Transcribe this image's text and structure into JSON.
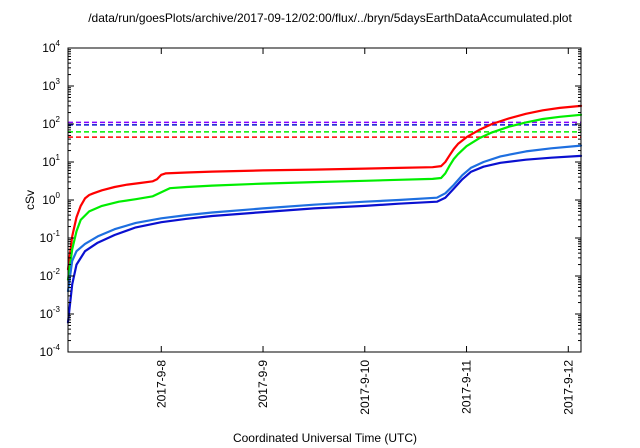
{
  "chart_data": {
    "type": "line",
    "title": "/data/run/goesPlots/archive/2017-09-12/02:00/flux/../bryn/5daysEarthDataAccumulated.plot",
    "xlabel": "Coordinated Universal Time (UTC)",
    "ylabel": "cSv",
    "y_scale": "log",
    "ylim": [
      0.0001,
      10000
    ],
    "y_ticks": [
      {
        "value": 0.0001,
        "base": "10",
        "exp": "-4"
      },
      {
        "value": 0.001,
        "base": "10",
        "exp": "-3"
      },
      {
        "value": 0.01,
        "base": "10",
        "exp": "-2"
      },
      {
        "value": 0.1,
        "base": "10",
        "exp": "-1"
      },
      {
        "value": 1,
        "base": "10",
        "exp": "0"
      },
      {
        "value": 10,
        "base": "10",
        "exp": "1"
      },
      {
        "value": 100,
        "base": "10",
        "exp": "2"
      },
      {
        "value": 1000,
        "base": "10",
        "exp": "3"
      },
      {
        "value": 10000,
        "base": "10",
        "exp": "4"
      }
    ],
    "xlim": [
      "2017-09-07T02:00",
      "2017-09-12T03:00"
    ],
    "x_ticks": [
      {
        "value": "2017-09-08T00:00",
        "label": "2017-9-8"
      },
      {
        "value": "2017-09-09T00:00",
        "label": "2017-9-9"
      },
      {
        "value": "2017-09-10T00:00",
        "label": "2017-9-10"
      },
      {
        "value": "2017-09-11T00:00",
        "label": "2017-9-11"
      },
      {
        "value": "2017-09-12T00:00",
        "label": "2017-9-12"
      }
    ],
    "grid": false,
    "legend": "none",
    "series": [
      {
        "color": "#ff0000",
        "style": "solid",
        "points": [
          [
            "2017-09-07T02:00",
            0.015
          ],
          [
            "2017-09-07T03:00",
            0.11
          ],
          [
            "2017-09-07T04:00",
            0.35
          ],
          [
            "2017-09-07T05:00",
            0.7
          ],
          [
            "2017-09-07T06:00",
            1.1
          ],
          [
            "2017-09-07T07:00",
            1.35
          ],
          [
            "2017-09-07T08:00",
            1.5
          ],
          [
            "2017-09-07T10:00",
            1.8
          ],
          [
            "2017-09-07T13:00",
            2.2
          ],
          [
            "2017-09-07T16:00",
            2.55
          ],
          [
            "2017-09-07T19:00",
            2.8
          ],
          [
            "2017-09-07T22:00",
            3.1
          ],
          [
            "2017-09-07T23:00",
            3.5
          ],
          [
            "2017-09-08T00:00",
            4.6
          ],
          [
            "2017-09-08T01:00",
            5.0
          ],
          [
            "2017-09-08T06:00",
            5.3
          ],
          [
            "2017-09-08T12:00",
            5.6
          ],
          [
            "2017-09-09T00:00",
            6.0
          ],
          [
            "2017-09-09T12:00",
            6.3
          ],
          [
            "2017-09-10T00:00",
            6.7
          ],
          [
            "2017-09-10T08:00",
            7.0
          ],
          [
            "2017-09-10T16:00",
            7.3
          ],
          [
            "2017-09-10T18:00",
            7.8
          ],
          [
            "2017-09-10T19:00",
            10.0
          ],
          [
            "2017-09-10T20:00",
            15
          ],
          [
            "2017-09-10T21:00",
            22
          ],
          [
            "2017-09-10T22:00",
            30
          ],
          [
            "2017-09-11T00:00",
            45
          ],
          [
            "2017-09-11T03:00",
            70
          ],
          [
            "2017-09-11T06:00",
            100
          ],
          [
            "2017-09-11T10:00",
            140
          ],
          [
            "2017-09-11T14:00",
            185
          ],
          [
            "2017-09-11T18:00",
            230
          ],
          [
            "2017-09-11T22:00",
            265
          ],
          [
            "2017-09-12T03:00",
            300
          ]
        ]
      },
      {
        "color": "#00ee00",
        "style": "solid",
        "points": [
          [
            "2017-09-07T02:00",
            0.008
          ],
          [
            "2017-09-07T03:00",
            0.05
          ],
          [
            "2017-09-07T04:00",
            0.15
          ],
          [
            "2017-09-07T05:00",
            0.3
          ],
          [
            "2017-09-07T07:00",
            0.5
          ],
          [
            "2017-09-07T10:00",
            0.7
          ],
          [
            "2017-09-07T14:00",
            0.9
          ],
          [
            "2017-09-07T18:00",
            1.05
          ],
          [
            "2017-09-07T22:00",
            1.25
          ],
          [
            "2017-09-08T00:00",
            1.6
          ],
          [
            "2017-09-08T02:00",
            2.05
          ],
          [
            "2017-09-08T06:00",
            2.2
          ],
          [
            "2017-09-08T12:00",
            2.4
          ],
          [
            "2017-09-09T00:00",
            2.7
          ],
          [
            "2017-09-09T12:00",
            2.95
          ],
          [
            "2017-09-10T00:00",
            3.2
          ],
          [
            "2017-09-10T08:00",
            3.4
          ],
          [
            "2017-09-10T16:00",
            3.6
          ],
          [
            "2017-09-10T18:00",
            3.8
          ],
          [
            "2017-09-10T19:00",
            5.0
          ],
          [
            "2017-09-10T20:00",
            8
          ],
          [
            "2017-09-10T21:00",
            12
          ],
          [
            "2017-09-10T22:00",
            16
          ],
          [
            "2017-09-11T00:00",
            26
          ],
          [
            "2017-09-11T03:00",
            42
          ],
          [
            "2017-09-11T06:00",
            60
          ],
          [
            "2017-09-11T10:00",
            85
          ],
          [
            "2017-09-11T14:00",
            110
          ],
          [
            "2017-09-11T18:00",
            135
          ],
          [
            "2017-09-11T22:00",
            155
          ],
          [
            "2017-09-12T03:00",
            175
          ]
        ]
      },
      {
        "color": "#1e6fe0",
        "style": "solid",
        "points": [
          [
            "2017-09-07T02:00",
            0.004
          ],
          [
            "2017-09-07T03:00",
            0.025
          ],
          [
            "2017-09-07T04:00",
            0.045
          ],
          [
            "2017-09-07T06:00",
            0.07
          ],
          [
            "2017-09-07T09:00",
            0.11
          ],
          [
            "2017-09-07T13:00",
            0.17
          ],
          [
            "2017-09-07T18:00",
            0.25
          ],
          [
            "2017-09-08T00:00",
            0.33
          ],
          [
            "2017-09-08T06:00",
            0.4
          ],
          [
            "2017-09-08T12:00",
            0.47
          ],
          [
            "2017-09-09T00:00",
            0.6
          ],
          [
            "2017-09-09T12:00",
            0.75
          ],
          [
            "2017-09-10T00:00",
            0.9
          ],
          [
            "2017-09-10T08:00",
            1.0
          ],
          [
            "2017-09-10T17:00",
            1.15
          ],
          [
            "2017-09-10T19:00",
            1.5
          ],
          [
            "2017-09-10T21:00",
            2.5
          ],
          [
            "2017-09-10T23:00",
            4.5
          ],
          [
            "2017-09-11T01:00",
            7.0
          ],
          [
            "2017-09-11T04:00",
            10
          ],
          [
            "2017-09-11T08:00",
            14
          ],
          [
            "2017-09-11T14:00",
            19
          ],
          [
            "2017-09-11T20:00",
            23
          ],
          [
            "2017-09-12T03:00",
            27
          ]
        ]
      },
      {
        "color": "#0a10d0",
        "style": "solid",
        "points": [
          [
            "2017-09-07T02:00",
            0.0006
          ],
          [
            "2017-09-07T03:00",
            0.006
          ],
          [
            "2017-09-07T04:00",
            0.02
          ],
          [
            "2017-09-07T06:00",
            0.045
          ],
          [
            "2017-09-07T09:00",
            0.075
          ],
          [
            "2017-09-07T13:00",
            0.12
          ],
          [
            "2017-09-07T18:00",
            0.19
          ],
          [
            "2017-09-08T00:00",
            0.26
          ],
          [
            "2017-09-08T06:00",
            0.32
          ],
          [
            "2017-09-08T12:00",
            0.38
          ],
          [
            "2017-09-09T00:00",
            0.48
          ],
          [
            "2017-09-09T12:00",
            0.6
          ],
          [
            "2017-09-10T00:00",
            0.7
          ],
          [
            "2017-09-10T08:00",
            0.8
          ],
          [
            "2017-09-10T17:00",
            0.9
          ],
          [
            "2017-09-10T19:00",
            1.15
          ],
          [
            "2017-09-10T21:00",
            2.0
          ],
          [
            "2017-09-10T23:00",
            3.5
          ],
          [
            "2017-09-11T01:00",
            5.5
          ],
          [
            "2017-09-11T04:00",
            7.5
          ],
          [
            "2017-09-11T08:00",
            9.5
          ],
          [
            "2017-09-11T14:00",
            11.5
          ],
          [
            "2017-09-11T20:00",
            13
          ],
          [
            "2017-09-12T03:00",
            14.5
          ]
        ]
      }
    ],
    "reference_lines": [
      {
        "value": 110,
        "color": "#8800ff",
        "style": "dashed"
      },
      {
        "value": 95,
        "color": "#0a10d0",
        "style": "dashed"
      },
      {
        "value": 62,
        "color": "#00ee00",
        "style": "dashed"
      },
      {
        "value": 45,
        "color": "#ff0000",
        "style": "dashed"
      }
    ]
  }
}
